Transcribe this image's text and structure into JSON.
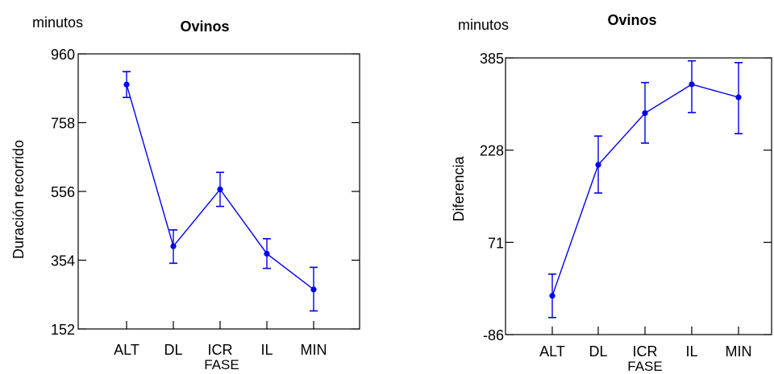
{
  "chart_data": [
    {
      "type": "line",
      "unit_label": "minutos",
      "title": "Ovinos",
      "xlabel": "FASE",
      "ylabel": "Duración recorrido",
      "categories": [
        "ALT",
        "DL",
        "ICR",
        "IL",
        "MIN"
      ],
      "yticks": [
        "960",
        "758",
        "556",
        "354",
        "152"
      ],
      "ylim": [
        152,
        960
      ],
      "series": [
        {
          "values": [
            870,
            395,
            562,
            373,
            268
          ],
          "error_low": [
            832,
            345,
            512,
            330,
            205
          ],
          "error_high": [
            908,
            443,
            612,
            417,
            333
          ]
        }
      ],
      "grid": false,
      "color": "#0000ee"
    },
    {
      "type": "line",
      "unit_label": "minutos",
      "title": "Ovinos",
      "xlabel": "FASE",
      "ylabel": "Diferencia",
      "categories": [
        "ALT",
        "DL",
        "ICR",
        "IL",
        "MIN"
      ],
      "yticks": [
        "385",
        "228",
        "71",
        "-86"
      ],
      "ylim": [
        -86,
        385
      ],
      "series": [
        {
          "values": [
            -20,
            203,
            291,
            340,
            318
          ],
          "error_low": [
            -57,
            155,
            240,
            292,
            256
          ],
          "error_high": [
            17,
            252,
            343,
            380,
            377
          ]
        }
      ],
      "grid": false,
      "color": "#0000ee"
    }
  ]
}
